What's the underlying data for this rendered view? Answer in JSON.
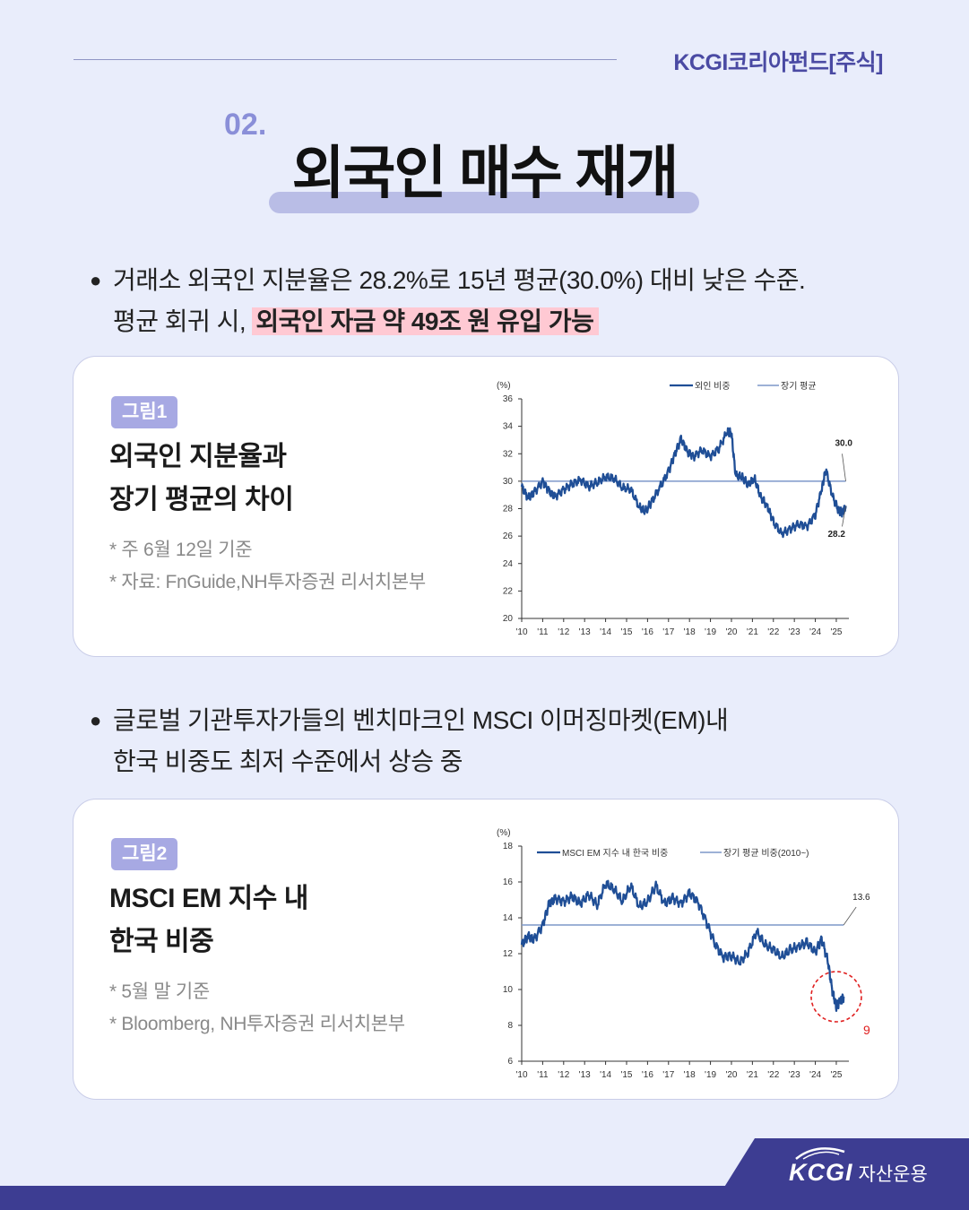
{
  "header": {
    "brand": "KCGI코리아펀드[주식]"
  },
  "section": {
    "number": "02.",
    "title": "외국인 매수 재개"
  },
  "bullet1": {
    "line1": "거래소 외국인 지분율은 28.2%로 15년 평균(30.0%) 대비 낮은 수준.",
    "line2_plain": "평균 회귀 시,",
    "line2_highlight": "외국인 자금 약 49조 원 유입 가능"
  },
  "card1": {
    "badge": "그림1",
    "title_line1": "외국인 지분율과",
    "title_line2": "장기 평균의 차이",
    "note1": "* 주 6월 12일 기준",
    "note2": "* 자료: FnGuide,NH투자증권 리서치본부"
  },
  "bullet2": {
    "line1": "글로벌 기관투자가들의 벤치마크인 MSCI 이머징마켓(EM)내",
    "line2": "한국 비중도 최저 수준에서 상승 중"
  },
  "card2": {
    "badge": "그림2",
    "title_line1": "MSCI EM 지수 내",
    "title_line2": "한국 비중",
    "note1": "* 5월 말 기준",
    "note2": "* Bloomberg, NH투자증권 리서치본부"
  },
  "footer": {
    "logo_text": "KCGI",
    "logo_sub": "자산운용"
  },
  "chart_data": [
    {
      "type": "line",
      "unit_label": "(%)",
      "ylim": [
        20,
        36
      ],
      "yticks": [
        20,
        22,
        24,
        26,
        28,
        30,
        32,
        34,
        36
      ],
      "xticks": [
        "'10",
        "'11",
        "'12",
        "'13",
        "'14",
        "'15",
        "'16",
        "'17",
        "'18",
        "'19",
        "'20",
        "'21",
        "'22",
        "'23",
        "'24",
        "'25"
      ],
      "legend_position": "top",
      "series": [
        {
          "name": "외인 비중",
          "color": "#1f4e96",
          "x": [
            2010.0,
            2010.3,
            2010.6,
            2011.0,
            2011.3,
            2011.6,
            2012.0,
            2012.4,
            2012.8,
            2013.2,
            2013.6,
            2014.0,
            2014.4,
            2014.8,
            2015.2,
            2015.6,
            2015.9,
            2016.2,
            2016.6,
            2017.0,
            2017.3,
            2017.6,
            2017.9,
            2018.2,
            2018.6,
            2019.0,
            2019.4,
            2019.8,
            2020.0,
            2020.2,
            2020.5,
            2020.8,
            2021.1,
            2021.4,
            2021.7,
            2022.0,
            2022.4,
            2022.8,
            2023.2,
            2023.6,
            2024.0,
            2024.3,
            2024.5,
            2024.8,
            2025.1,
            2025.3,
            2025.45
          ],
          "y": [
            29.6,
            28.8,
            29.2,
            30.0,
            29.3,
            28.9,
            29.4,
            29.8,
            30.1,
            29.6,
            29.9,
            30.3,
            30.2,
            29.5,
            29.4,
            28.1,
            27.8,
            28.5,
            29.6,
            30.7,
            32.0,
            33.1,
            32.2,
            31.8,
            32.3,
            31.8,
            32.4,
            33.6,
            33.5,
            30.4,
            30.3,
            29.7,
            30.2,
            28.8,
            28.2,
            27.0,
            26.2,
            26.5,
            26.9,
            26.7,
            27.6,
            29.4,
            30.9,
            29.0,
            27.9,
            27.7,
            28.2
          ]
        },
        {
          "name": "장기 평균",
          "color": "#7d97c9",
          "x": [
            2010.0,
            2025.45
          ],
          "y": [
            30.0,
            30.0
          ]
        }
      ],
      "annotations": [
        {
          "text": "30.0",
          "value": 30.0
        },
        {
          "text": "28.2",
          "value": 28.2
        }
      ]
    },
    {
      "type": "line",
      "unit_label": "(%)",
      "ylim": [
        6,
        18
      ],
      "yticks": [
        6,
        8,
        10,
        12,
        14,
        16,
        18
      ],
      "xticks": [
        "'10",
        "'11",
        "'12",
        "'13",
        "'14",
        "'15",
        "'16",
        "'17",
        "'18",
        "'19",
        "'20",
        "'21",
        "'22",
        "'23",
        "'24",
        "'25"
      ],
      "legend_position": "top",
      "series": [
        {
          "name": "MSCI EM 지수 내 한국 비중",
          "color": "#1f4e96",
          "x": [
            2010.0,
            2010.3,
            2010.6,
            2011.0,
            2011.3,
            2011.6,
            2012.0,
            2012.4,
            2012.8,
            2013.2,
            2013.6,
            2014.0,
            2014.4,
            2014.8,
            2015.2,
            2015.6,
            2016.0,
            2016.4,
            2016.8,
            2017.2,
            2017.6,
            2018.0,
            2018.4,
            2018.8,
            2019.2,
            2019.6,
            2020.0,
            2020.4,
            2020.8,
            2021.2,
            2021.6,
            2022.0,
            2022.4,
            2022.8,
            2023.2,
            2023.6,
            2024.0,
            2024.3,
            2024.6,
            2024.8,
            2025.0,
            2025.2,
            2025.35
          ],
          "y": [
            12.5,
            13.0,
            12.8,
            13.6,
            14.8,
            15.1,
            14.9,
            15.2,
            14.8,
            15.3,
            14.7,
            15.9,
            15.6,
            14.9,
            15.8,
            14.6,
            14.9,
            15.8,
            14.8,
            15.1,
            14.8,
            15.4,
            14.9,
            13.8,
            12.6,
            11.8,
            11.9,
            11.5,
            12.1,
            13.2,
            12.5,
            12.2,
            11.8,
            12.2,
            12.4,
            12.6,
            12.1,
            12.8,
            11.6,
            10.0,
            9.1,
            9.4,
            9.6
          ]
        },
        {
          "name": "장기 평균 비중(2010~)",
          "color": "#7d97c9",
          "x": [
            2010.0,
            2025.35
          ],
          "y": [
            13.6,
            13.6
          ]
        }
      ],
      "annotations": [
        {
          "text": "13.6",
          "value": 13.6
        },
        {
          "text": "9",
          "value": 9.0
        }
      ]
    }
  ]
}
